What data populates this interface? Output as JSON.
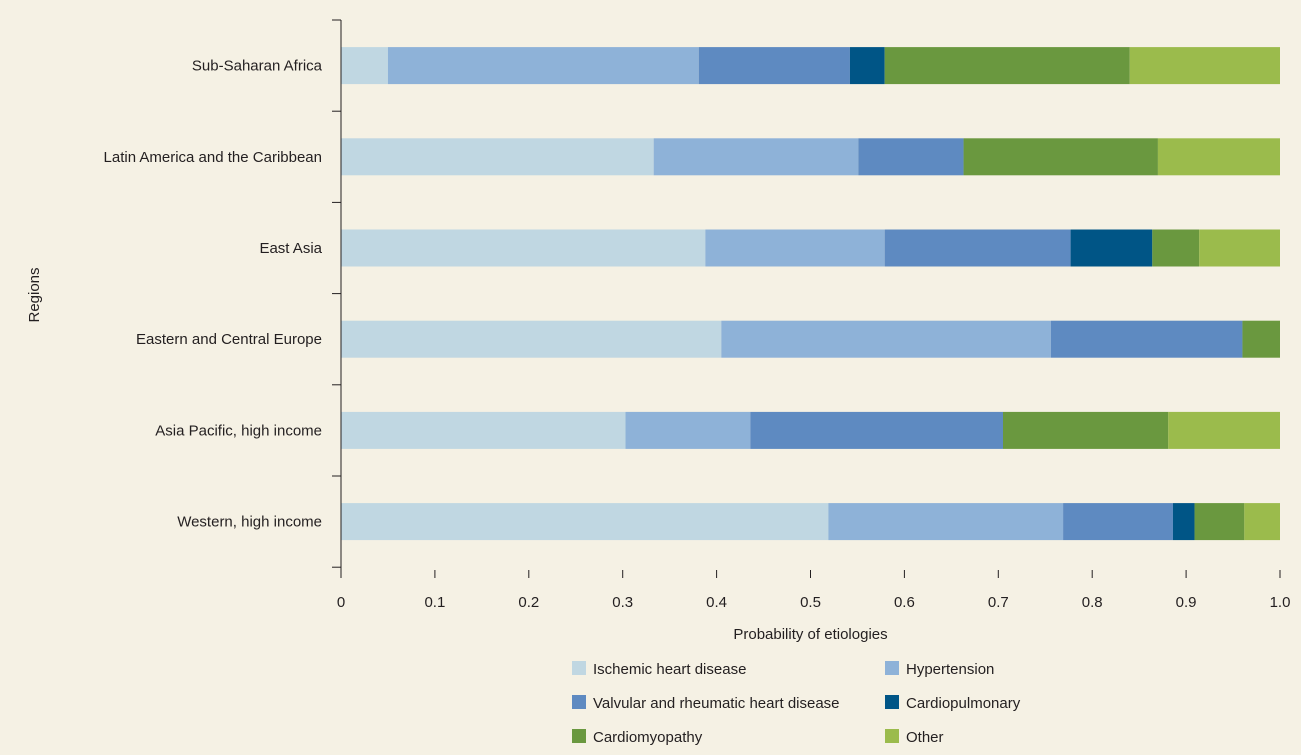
{
  "chart_data": {
    "type": "bar",
    "orientation": "horizontal",
    "stacked": true,
    "title": "",
    "xlabel": "Probability of etiologies",
    "ylabel": "Regions",
    "xlim": [
      0,
      1.0
    ],
    "x_ticks": [
      "0",
      "0.1",
      "0.2",
      "0.3",
      "0.4",
      "0.5",
      "0.6",
      "0.7",
      "0.8",
      "0.9",
      "1.0"
    ],
    "grid": false,
    "legend_position": "bottom",
    "categories": [
      "Sub-Saharan Africa",
      "Latin America and the Caribbean",
      "East Asia",
      "Eastern and Central Europe",
      "Asia Pacific, high income",
      "Western, high income"
    ],
    "series": [
      {
        "name": "Ischemic heart disease",
        "color": "#c0d7e2",
        "values": [
          0.05,
          0.333,
          0.388,
          0.405,
          0.303,
          0.519
        ]
      },
      {
        "name": "Hypertension",
        "color": "#8eb2d8",
        "values": [
          0.331,
          0.218,
          0.191,
          0.351,
          0.133,
          0.25
        ]
      },
      {
        "name": "Valvular and rheumatic heart disease",
        "color": "#5e8ac1",
        "values": [
          0.161,
          0.112,
          0.198,
          0.204,
          0.269,
          0.117
        ]
      },
      {
        "name": "Cardiopulmonary",
        "color": "#005586",
        "values": [
          0.037,
          0.0,
          0.087,
          0.0,
          0.0,
          0.023
        ]
      },
      {
        "name": "Cardiomyopathy",
        "color": "#6a983f",
        "values": [
          0.261,
          0.207,
          0.05,
          0.04,
          0.176,
          0.053
        ]
      },
      {
        "name": "Other",
        "color": "#9bbb4c",
        "values": [
          0.16,
          0.13,
          0.086,
          0.0,
          0.119,
          0.038
        ]
      }
    ]
  }
}
